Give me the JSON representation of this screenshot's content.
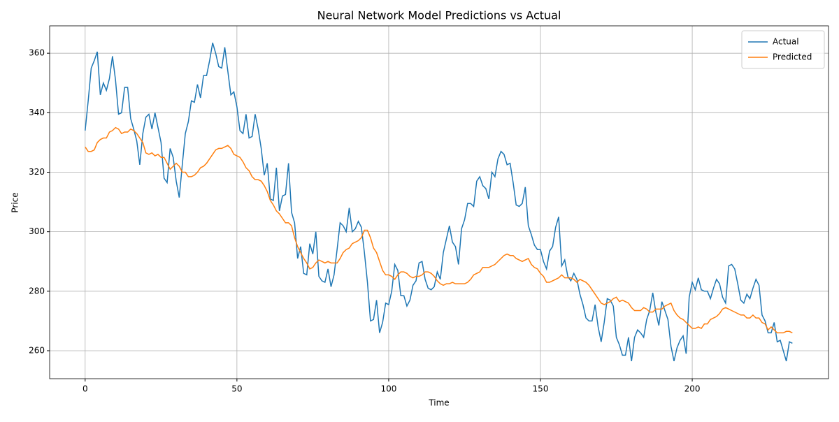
{
  "chart_data": {
    "type": "line",
    "title": "Neural Network Model Predictions vs Actual",
    "x_label": "Time",
    "y_label": "Price",
    "x": [
      0,
      1,
      2,
      3,
      4,
      5,
      6,
      7,
      8,
      9,
      10,
      11,
      12,
      13,
      14,
      15,
      16,
      17,
      18,
      19,
      20,
      21,
      22,
      23,
      24,
      25,
      26,
      27,
      28,
      29,
      30,
      31,
      32,
      33,
      34,
      35,
      36,
      37,
      38,
      39,
      40,
      41,
      42,
      43,
      44,
      45,
      46,
      47,
      48,
      49,
      50,
      51,
      52,
      53,
      54,
      55,
      56,
      57,
      58,
      59,
      60,
      61,
      62,
      63,
      64,
      65,
      66,
      67,
      68,
      69,
      70,
      71,
      72,
      73,
      74,
      75,
      76,
      77,
      78,
      79,
      80,
      81,
      82,
      83,
      84,
      85,
      86,
      87,
      88,
      89,
      90,
      91,
      92,
      93,
      94,
      95,
      96,
      97,
      98,
      99,
      100,
      101,
      102,
      103,
      104,
      105,
      106,
      107,
      108,
      109,
      110,
      111,
      112,
      113,
      114,
      115,
      116,
      117,
      118,
      119,
      120,
      121,
      122,
      123,
      124,
      125,
      126,
      127,
      128,
      129,
      130,
      131,
      132,
      133,
      134,
      135,
      136,
      137,
      138,
      139,
      140,
      141,
      142,
      143,
      144,
      145,
      146,
      147,
      148,
      149,
      150,
      151,
      152,
      153,
      154,
      155,
      156,
      157,
      158,
      159,
      160,
      161,
      162,
      163,
      164,
      165,
      166,
      167,
      168,
      169,
      170,
      171,
      172,
      173,
      174,
      175,
      176,
      177,
      178,
      179,
      180,
      181,
      182,
      183,
      184,
      185,
      186,
      187,
      188,
      189,
      190,
      191,
      192,
      193,
      194,
      195,
      196,
      197,
      198,
      199,
      200,
      201,
      202,
      203,
      204,
      205,
      206,
      207,
      208,
      209,
      210,
      211,
      212,
      213,
      214,
      215,
      216,
      217,
      218,
      219,
      220,
      221,
      222,
      223,
      224,
      225,
      226,
      227,
      228,
      229,
      230,
      231,
      232,
      233
    ],
    "series": [
      {
        "name": "Actual",
        "color": "#1f77b4",
        "values": [
          334,
          344,
          355,
          357.5,
          360.5,
          346,
          350,
          347.5,
          351.5,
          359,
          351,
          339.5,
          340,
          348.5,
          348.5,
          338,
          334.5,
          330.5,
          322.5,
          333,
          338.5,
          339.5,
          334.5,
          340,
          335,
          330,
          318,
          316.5,
          328,
          325,
          317,
          311.5,
          322.5,
          333,
          337,
          344,
          343.5,
          349.5,
          345,
          352.5,
          352.5,
          357.5,
          363.5,
          360,
          355.5,
          355,
          362,
          354,
          346,
          347,
          342,
          334,
          333,
          339.5,
          331.5,
          332,
          339.5,
          334.5,
          328,
          319,
          323,
          311,
          310.5,
          321.5,
          307,
          312,
          312.5,
          323,
          306.5,
          303,
          291,
          295,
          286,
          285.5,
          296,
          292.5,
          300,
          285,
          283.5,
          283,
          287.5,
          281.5,
          285.5,
          294,
          303,
          302,
          300,
          308,
          300,
          301,
          303.5,
          301.5,
          293,
          283,
          270,
          270.5,
          277,
          266,
          269.5,
          276,
          275.5,
          280,
          289,
          287,
          278.5,
          278.5,
          275,
          277,
          282,
          283.5,
          289.5,
          290,
          284,
          281,
          280.5,
          281.5,
          286.5,
          284,
          293,
          297.5,
          302,
          296.5,
          295,
          289,
          301,
          304,
          309.5,
          309.5,
          308.5,
          317,
          318.5,
          315.5,
          314.5,
          311,
          320,
          318.5,
          324.5,
          327,
          326,
          322.5,
          323,
          316.5,
          309,
          308.5,
          309.5,
          315,
          302,
          299,
          295.5,
          294,
          294,
          290,
          287.5,
          293.5,
          295,
          301.5,
          305,
          288.5,
          290.5,
          285,
          283.5,
          286,
          284,
          279,
          275.5,
          271,
          270,
          270,
          275.5,
          268,
          263,
          269.5,
          277.5,
          277,
          275,
          264.5,
          262,
          258.5,
          258.5,
          264.5,
          256.5,
          264.5,
          267,
          266,
          264.5,
          270.5,
          273.5,
          279.5,
          273,
          268.5,
          276.5,
          273.5,
          270.5,
          261.5,
          256.5,
          261,
          263.5,
          265,
          259,
          278,
          283,
          280.5,
          284.5,
          280.5,
          280,
          280,
          277.5,
          281,
          284,
          282.5,
          278,
          276,
          288.5,
          289,
          287.5,
          282.5,
          277,
          276,
          279,
          277.5,
          281,
          284,
          282,
          272,
          270,
          266,
          266,
          269.5,
          263,
          263.5,
          260,
          256.5,
          263,
          262.5
        ]
      },
      {
        "name": "Predicted",
        "color": "#ff7f0e",
        "values": [
          328.5,
          327,
          327,
          327.5,
          330,
          331,
          331.5,
          331.5,
          333.5,
          334,
          335,
          334.5,
          333,
          333.5,
          333.5,
          334.5,
          334,
          333,
          331.5,
          330,
          326.5,
          326,
          326.5,
          325.5,
          326,
          325,
          325,
          323,
          321,
          322,
          323,
          322,
          320,
          320,
          318.5,
          318.5,
          319,
          320,
          321.5,
          322,
          323,
          324.5,
          326,
          327.5,
          328,
          328,
          328.5,
          329,
          328,
          326,
          325.5,
          325,
          323.5,
          321.5,
          320.5,
          318.5,
          317.5,
          317.5,
          317,
          315.5,
          313.5,
          310.5,
          309,
          307,
          306,
          304.5,
          303,
          303,
          302,
          298,
          295,
          293,
          291,
          289.5,
          287.5,
          288,
          289.5,
          290.5,
          290,
          289.5,
          290,
          289.5,
          289.5,
          289.5,
          291,
          293,
          294,
          294.5,
          296,
          296.5,
          297,
          298,
          300.5,
          300.5,
          298,
          294.5,
          293,
          290,
          287,
          285.5,
          285.5,
          285,
          284,
          285.5,
          286.5,
          286.5,
          286,
          285,
          284.5,
          285,
          285,
          285.5,
          286.5,
          286.5,
          286,
          285,
          283.5,
          282.5,
          282,
          282.5,
          282.5,
          283,
          282.5,
          282.5,
          282.5,
          282.5,
          283,
          284,
          285.5,
          286,
          286.5,
          288,
          288,
          288,
          288.5,
          289,
          290,
          291,
          292,
          292.5,
          292,
          292,
          291,
          290.5,
          290,
          290.5,
          291,
          289,
          288,
          287.5,
          286,
          285,
          283,
          283,
          283.5,
          284,
          284.5,
          285.5,
          284.5,
          284.5,
          284.5,
          284,
          283,
          284,
          283.5,
          283,
          282,
          280.5,
          279,
          277.5,
          276,
          275.5,
          276,
          276.5,
          277.5,
          278,
          276.5,
          277,
          276.5,
          276,
          274.5,
          273.5,
          273.5,
          273.5,
          274.5,
          274,
          273,
          273,
          274,
          274,
          274,
          275,
          275.5,
          276,
          273.5,
          272,
          271,
          270.5,
          269.5,
          268.5,
          267.5,
          267.5,
          268,
          267.5,
          269,
          269,
          270.5,
          271,
          271.5,
          272.5,
          274,
          274.5,
          274,
          273.5,
          273,
          272.5,
          272,
          272,
          271,
          271,
          272,
          271,
          271,
          269.5,
          269,
          267,
          268,
          267,
          266,
          266,
          266,
          266.5,
          266.5,
          266
        ]
      }
    ],
    "xlim": [
      -11.7,
      244.9
    ],
    "xticks": [
      0,
      50,
      100,
      150,
      200
    ],
    "ylim": [
      250.6,
      369.2
    ],
    "yticks": [
      260,
      280,
      300,
      320,
      340,
      360
    ],
    "grid": true,
    "legend": "upper right"
  }
}
